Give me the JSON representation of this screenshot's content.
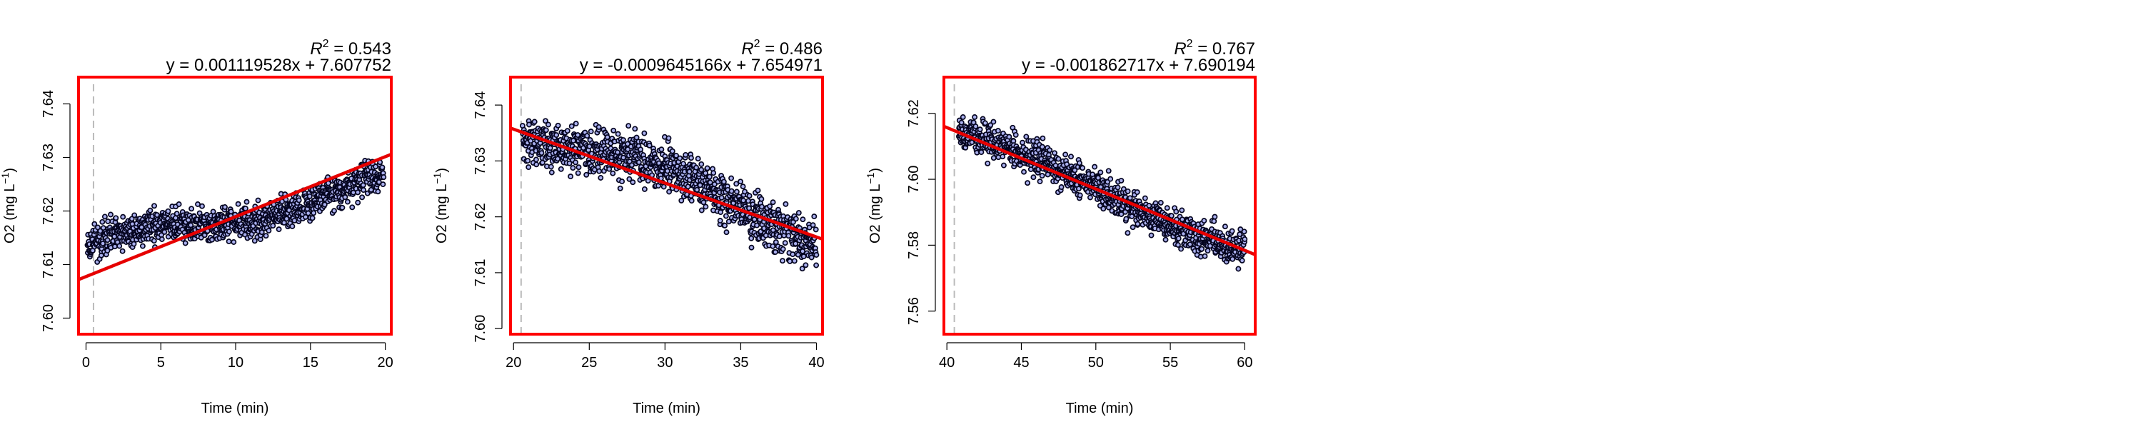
{
  "chart_data": [
    {
      "type": "scatter",
      "r2_value": "0.543",
      "equation": "y = 0.001119528x + 7.607752",
      "xlabel": "Time (min)",
      "ylabel_main": "O2 (mg L",
      "ylabel_exp": "−1",
      "xlim": [
        -0.5,
        20.4
      ],
      "ylim": [
        7.597,
        7.645
      ],
      "xticks": [
        0,
        5,
        10,
        15,
        20
      ],
      "yticks": [
        7.6,
        7.61,
        7.62,
        7.63,
        7.64
      ],
      "ytick_labels": [
        "7.60",
        "7.61",
        "7.62",
        "7.63",
        "7.64"
      ],
      "fit": {
        "slope": 0.001119528,
        "intercept": 7.607752
      },
      "gen": {
        "t0": 0.1,
        "t1": 19.9,
        "n": 1000,
        "noise": 0.004,
        "shape": "a"
      },
      "vline_x": 0.5,
      "colors": {
        "frame": "#ff0000",
        "fit": "#e60000",
        "point_fill": "#aab0ee",
        "point_edge": "#050520",
        "vline": "#bbbbbb"
      }
    },
    {
      "type": "scatter",
      "r2_value": "0.486",
      "equation": "y = -0.0009645166x + 7.654971",
      "xlabel": "Time (min)",
      "ylabel_main": "O2 (mg L",
      "ylabel_exp": "−1",
      "xlim": [
        19.8,
        40.4
      ],
      "ylim": [
        7.599,
        7.645
      ],
      "xticks": [
        20,
        25,
        30,
        35,
        40
      ],
      "yticks": [
        7.6,
        7.61,
        7.62,
        7.63,
        7.64
      ],
      "ytick_labels": [
        "7.60",
        "7.61",
        "7.62",
        "7.63",
        "7.64"
      ],
      "fit": {
        "slope": -0.0009645166,
        "intercept": 7.654971
      },
      "gen": {
        "t0": 20.6,
        "t1": 40.0,
        "n": 1000,
        "noise": 0.0055,
        "shape": "b"
      },
      "vline_x": 20.5,
      "colors": {
        "frame": "#ff0000",
        "fit": "#e60000",
        "point_fill": "#aab0ee",
        "point_edge": "#050520",
        "vline": "#bbbbbb"
      }
    },
    {
      "type": "scatter",
      "r2_value": "0.767",
      "equation": "y = -0.001862717x + 7.690194",
      "xlabel": "Time (min)",
      "ylabel_main": "O2 (mg L",
      "ylabel_exp": "−1",
      "xlim": [
        39.8,
        60.7
      ],
      "ylim": [
        7.553,
        7.631
      ],
      "xticks": [
        40,
        45,
        50,
        55,
        60
      ],
      "yticks": [
        7.56,
        7.58,
        7.6,
        7.62
      ],
      "ytick_labels": [
        "7.56",
        "7.58",
        "7.60",
        "7.62"
      ],
      "fit": {
        "slope": -0.001862717,
        "intercept": 7.690194
      },
      "gen": {
        "t0": 40.8,
        "t1": 60.0,
        "n": 1000,
        "noise": 0.0065,
        "shape": "c"
      },
      "vline_x": 40.5,
      "colors": {
        "frame": "#ff0000",
        "fit": "#e60000",
        "point_fill": "#aab0ee",
        "point_edge": "#050520",
        "vline": "#bbbbbb"
      }
    }
  ]
}
